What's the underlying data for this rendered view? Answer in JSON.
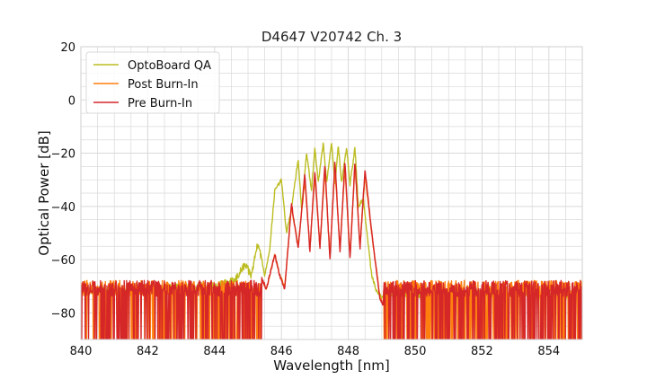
{
  "chart_data": {
    "type": "line",
    "title": "D4647 V20742 Ch. 3",
    "xlabel": "Wavelength [nm]",
    "ylabel": "Optical Power [dB]",
    "xlim": [
      840,
      855
    ],
    "ylim": [
      -90,
      20
    ],
    "x_ticks": [
      840,
      842,
      844,
      846,
      848,
      850,
      852,
      854
    ],
    "y_ticks": [
      20,
      0,
      -20,
      -40,
      -60,
      -80
    ],
    "y_tick_labels": [
      "20",
      "0",
      "−20",
      "−40",
      "−60",
      "−80"
    ],
    "grid": true,
    "legend_position": "top-left",
    "noise_floor": {
      "OptoBoard QA": -72,
      "Post Burn-In": -78,
      "Pre Burn-In": -78
    },
    "series": [
      {
        "name": "OptoBoard QA",
        "color": "#bcbd22",
        "x": [
          840,
          844,
          844.6,
          844.9,
          845.1,
          845.3,
          845.5,
          845.65,
          845.8,
          846.0,
          846.15,
          846.3,
          846.5,
          846.6,
          846.75,
          846.9,
          847.0,
          847.1,
          847.25,
          847.35,
          847.5,
          847.6,
          847.7,
          847.8,
          847.95,
          848.05,
          848.2,
          848.3,
          848.45,
          848.55,
          848.7,
          848.85,
          849.0,
          849.1,
          855
        ],
        "y": [
          -72,
          -70,
          -68,
          -62,
          -66,
          -53,
          -66,
          -56,
          -34,
          -30,
          -50,
          -41,
          -22,
          -41,
          -20,
          -34,
          -18,
          -31,
          -16,
          -31,
          -16,
          -32,
          -17,
          -31,
          -18,
          -32,
          -18,
          -40,
          -37,
          -49,
          -66,
          -72,
          -74,
          -73,
          -73
        ]
      },
      {
        "name": "Post Burn-In",
        "color": "#ff7f0e",
        "x": [
          840,
          844.6,
          845,
          845.3,
          845.55,
          845.8,
          845.95,
          846.1,
          846.3,
          846.5,
          846.7,
          846.85,
          847.0,
          847.15,
          847.3,
          847.45,
          847.6,
          847.75,
          847.9,
          848.05,
          848.2,
          848.35,
          848.5,
          848.65,
          848.8,
          848.95,
          849.1,
          855
        ],
        "y": [
          -78,
          -78,
          -68,
          -65,
          -71,
          -58,
          -66,
          -70,
          -40,
          -55,
          -30,
          -56,
          -28,
          -55,
          -26,
          -59,
          -25,
          -56,
          -25,
          -59,
          -24,
          -55,
          -28,
          -45,
          -60,
          -74,
          -78,
          -78
        ]
      },
      {
        "name": "Pre Burn-In",
        "color": "#d62728",
        "x": [
          840,
          844.6,
          845,
          845.3,
          845.55,
          845.8,
          845.95,
          846.1,
          846.3,
          846.5,
          846.7,
          846.85,
          847.0,
          847.15,
          847.3,
          847.45,
          847.6,
          847.75,
          847.9,
          848.05,
          848.2,
          848.35,
          848.5,
          848.65,
          848.8,
          848.95,
          849.1,
          855
        ],
        "y": [
          -78,
          -78,
          -68,
          -64,
          -71,
          -58,
          -66,
          -71,
          -39,
          -56,
          -28,
          -57,
          -26,
          -56,
          -24,
          -60,
          -23,
          -57,
          -23,
          -60,
          -23,
          -56,
          -26,
          -44,
          -60,
          -75,
          -78,
          -78
        ]
      }
    ]
  }
}
